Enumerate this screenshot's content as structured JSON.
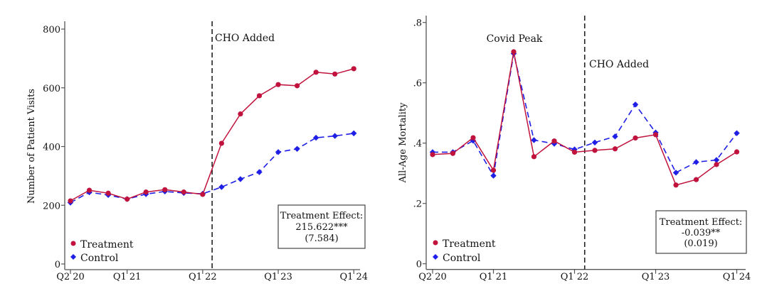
{
  "chart_data": [
    {
      "type": "line",
      "title": "",
      "xlabel": "",
      "ylabel": "Number of Patient Visits",
      "ylim": [
        0,
        800
      ],
      "yticks": [
        0,
        200,
        400,
        600,
        800
      ],
      "ytick_labels": [
        "0",
        "200",
        "400",
        "600",
        "800"
      ],
      "x": [
        "Q2 20",
        "Q3 20",
        "Q4 20",
        "Q1 21",
        "Q2 21",
        "Q3 21",
        "Q4 21",
        "Q1 22",
        "Q2 22",
        "Q3 22",
        "Q4 22",
        "Q1 23",
        "Q2 23",
        "Q3 23",
        "Q4 23",
        "Q1 24"
      ],
      "xtick_labels": [
        "Q2 20",
        "Q1 21",
        "Q1 22",
        "Q1 23",
        "Q1 24"
      ],
      "grid": false,
      "legend_position": "bottom-left",
      "series": [
        {
          "name": "Treatment",
          "color": "#c0123c",
          "marker": "circle",
          "style": "solid",
          "values": [
            215,
            251,
            241,
            221,
            245,
            253,
            245,
            237,
            411,
            511,
            573,
            611,
            607,
            653,
            647,
            665
          ]
        },
        {
          "name": "Control",
          "color": "#1f1fe6",
          "marker": "diamond",
          "style": "dashed",
          "values": [
            209,
            244,
            235,
            221,
            238,
            247,
            242,
            239,
            262,
            289,
            313,
            381,
            392,
            430,
            436,
            445
          ]
        }
      ],
      "vlines": [
        {
          "x_after": "Q1 22",
          "label": "CHO Added"
        }
      ],
      "annotations": [],
      "effect_box": {
        "title": "Treatment Effect:",
        "estimate": "215.622***",
        "se": "(7.584)"
      }
    },
    {
      "type": "line",
      "title": "",
      "xlabel": "",
      "ylabel": "All-Age Mortality",
      "ylim": [
        0,
        0.8
      ],
      "yticks": [
        0,
        0.2,
        0.4,
        0.6,
        0.8
      ],
      "ytick_labels": [
        "0",
        ".2",
        ".4",
        ".6",
        ".8"
      ],
      "x": [
        "Q2 20",
        "Q3 20",
        "Q4 20",
        "Q1 21",
        "Q2 21",
        "Q3 21",
        "Q4 21",
        "Q1 22",
        "Q2 22",
        "Q3 22",
        "Q4 22",
        "Q1 23",
        "Q2 23",
        "Q3 23",
        "Q4 23",
        "Q1 24"
      ],
      "xtick_labels": [
        "Q2 20",
        "Q1 21",
        "Q1 22",
        "Q1 23",
        "Q1 24"
      ],
      "grid": false,
      "legend_position": "bottom-left",
      "series": [
        {
          "name": "Treatment",
          "color": "#c0123c",
          "marker": "circle",
          "style": "solid",
          "values": [
            0.362,
            0.366,
            0.418,
            0.31,
            0.703,
            0.355,
            0.407,
            0.37,
            0.376,
            0.381,
            0.417,
            0.428,
            0.261,
            0.279,
            0.329,
            0.371
          ]
        },
        {
          "name": "Control",
          "color": "#1f1fe6",
          "marker": "diamond",
          "style": "dashed",
          "values": [
            0.37,
            0.37,
            0.408,
            0.292,
            0.697,
            0.41,
            0.398,
            0.379,
            0.402,
            0.422,
            0.528,
            0.435,
            0.302,
            0.337,
            0.344,
            0.433
          ]
        }
      ],
      "vlines": [
        {
          "x_after": "Q1 22",
          "label": "CHO Added"
        }
      ],
      "annotations": [
        {
          "text": "Covid Peak",
          "x": "Q2 21"
        }
      ],
      "effect_box": {
        "title": "Treatment Effect:",
        "estimate": "-0.039**",
        "se": "(0.019)"
      }
    }
  ]
}
